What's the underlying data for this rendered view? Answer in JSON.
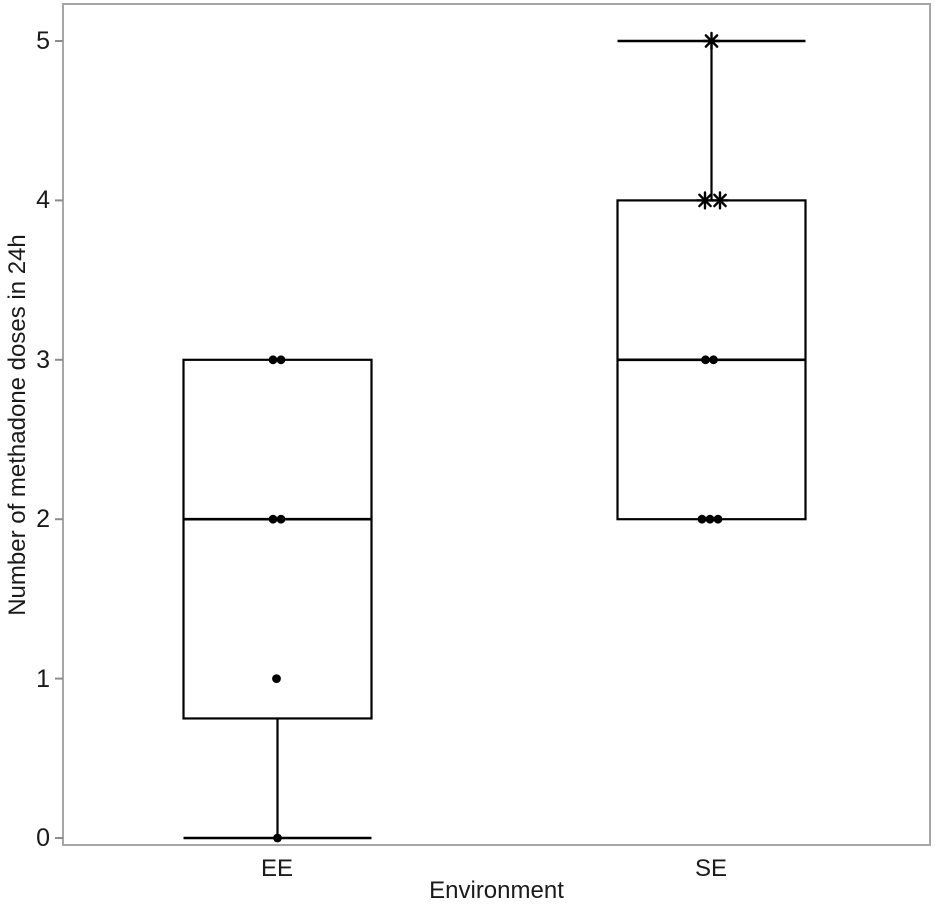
{
  "chart_data": {
    "type": "boxplot",
    "title": "",
    "xlabel": "Environment",
    "ylabel": "Number of methadone doses in 24h",
    "categories": [
      "EE",
      "SE"
    ],
    "ylim": [
      0,
      5
    ],
    "yticks": [
      "0",
      "1",
      "2",
      "3",
      "4",
      "5"
    ],
    "grid": false,
    "legend": null,
    "colors": {
      "frame": "#a6a6a6",
      "tick": "#8c8c8c",
      "box_stroke": "#000000",
      "point_fill": "#000000",
      "background": "#ffffff"
    },
    "boxes": [
      {
        "category": "EE",
        "min": 0,
        "q1": 0.75,
        "median": 2,
        "q3": 3,
        "max": 3,
        "lower_whisker": 0,
        "upper_whisker": null,
        "points": [
          {
            "value": 3,
            "dx": -4.5,
            "marker": "dot"
          },
          {
            "value": 3,
            "dx": 3.5,
            "marker": "dot"
          },
          {
            "value": 2,
            "dx": -4.5,
            "marker": "dot"
          },
          {
            "value": 2,
            "dx": 3.5,
            "marker": "dot"
          },
          {
            "value": 1,
            "dx": -1,
            "marker": "dot"
          },
          {
            "value": 0,
            "dx": 0,
            "marker": "dot"
          }
        ]
      },
      {
        "category": "SE",
        "min": 2,
        "q1": 2,
        "median": 3,
        "q3": 4,
        "max": 5,
        "lower_whisker": null,
        "upper_whisker": 5,
        "points": [
          {
            "value": 5,
            "dx": 0,
            "marker": "asterisk"
          },
          {
            "value": 4,
            "dx": -6.5,
            "marker": "asterisk"
          },
          {
            "value": 4,
            "dx": 8.5,
            "marker": "asterisk"
          },
          {
            "value": 3,
            "dx": -6,
            "marker": "dot"
          },
          {
            "value": 3,
            "dx": 2,
            "marker": "dot"
          },
          {
            "value": 2,
            "dx": -9.5,
            "marker": "dot"
          },
          {
            "value": 2,
            "dx": -1.5,
            "marker": "dot"
          },
          {
            "value": 2,
            "dx": 6.5,
            "marker": "dot"
          }
        ]
      }
    ]
  }
}
